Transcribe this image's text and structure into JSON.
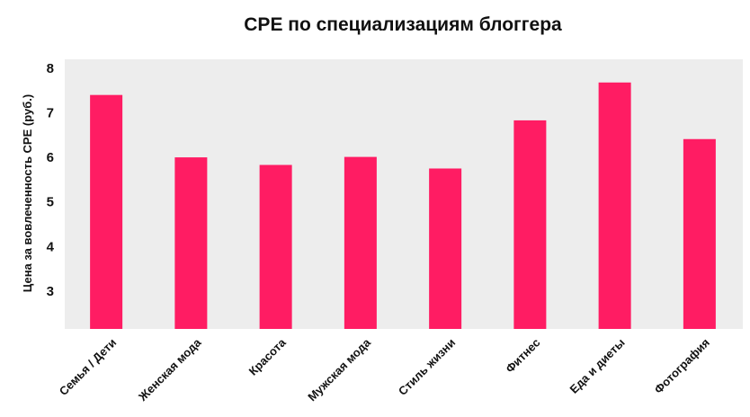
{
  "chart_data": {
    "type": "bar",
    "title": "CPE по специализациям блоггера",
    "ylabel": "Цена за вовлеченность CPE (руб.)",
    "xlabel": "",
    "categories": [
      "Семья / Дети",
      "Женская мода",
      "Красота",
      "Мужская мода",
      "Стиль жизни",
      "Фитнес",
      "Еда и диеты",
      "Фотография"
    ],
    "values": [
      7.4,
      6.0,
      5.83,
      6.01,
      5.75,
      6.83,
      7.68,
      6.41
    ],
    "ylim": [
      2.15,
      8.2
    ],
    "yticks": [
      3,
      4,
      5,
      6,
      7,
      8
    ],
    "grid": false,
    "legend": "none",
    "colors": {
      "bar": "#ff1c63",
      "plot_background": "#ededed"
    }
  }
}
